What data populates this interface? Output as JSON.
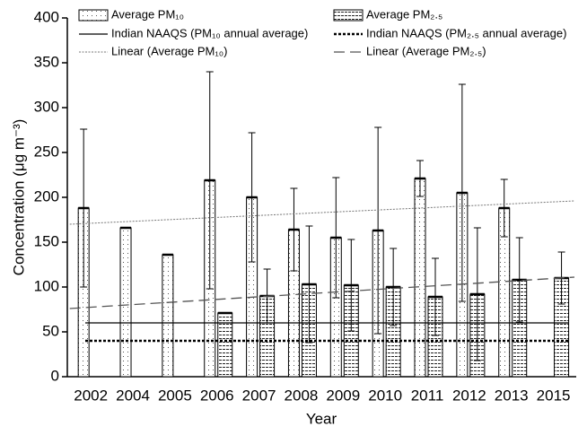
{
  "chart_data": {
    "type": "bar",
    "x_label": "Year",
    "y_label": "Concentration (μg m⁻³)",
    "categories": [
      "2002",
      "2004",
      "2005",
      "2006",
      "2007",
      "2008",
      "2009",
      "2010",
      "2011",
      "2012",
      "2013",
      "2015"
    ],
    "series": [
      {
        "name": "Average PM₁₀",
        "color": "#000000",
        "pattern": "sparse-dots",
        "values": [
          188,
          166,
          136,
          219,
          200,
          164,
          155,
          163,
          221,
          205,
          188,
          null
        ],
        "errors": [
          88,
          null,
          null,
          121,
          72,
          46,
          67,
          115,
          20,
          121,
          32,
          null
        ]
      },
      {
        "name": "Average PM₂.₅",
        "color": "#000000",
        "pattern": "dense-dashes",
        "values": [
          null,
          null,
          null,
          71,
          90,
          103,
          102,
          100,
          89,
          92,
          108,
          110
        ],
        "errors": [
          null,
          null,
          null,
          null,
          30,
          65,
          51,
          43,
          43,
          74,
          47,
          29
        ]
      }
    ],
    "reference_lines": [
      {
        "name": "Indian NAAQS (PM₁₀ annual average)",
        "value": 60,
        "dash": "solid"
      },
      {
        "name": "Indian NAAQS (PM₂.₅ annual average)",
        "value": 40,
        "dash": "dotted"
      }
    ],
    "trendlines": [
      {
        "name": "Linear (Average PM₁₀)",
        "values": [
          170,
          196
        ],
        "dash": "fine"
      },
      {
        "name": "Linear (Average PM₂.₅)",
        "values": [
          76,
          111
        ],
        "dash": "long"
      }
    ],
    "ylim": [
      0,
      400
    ],
    "yticks": [
      0,
      50,
      100,
      150,
      200,
      250,
      300,
      350,
      400
    ]
  }
}
